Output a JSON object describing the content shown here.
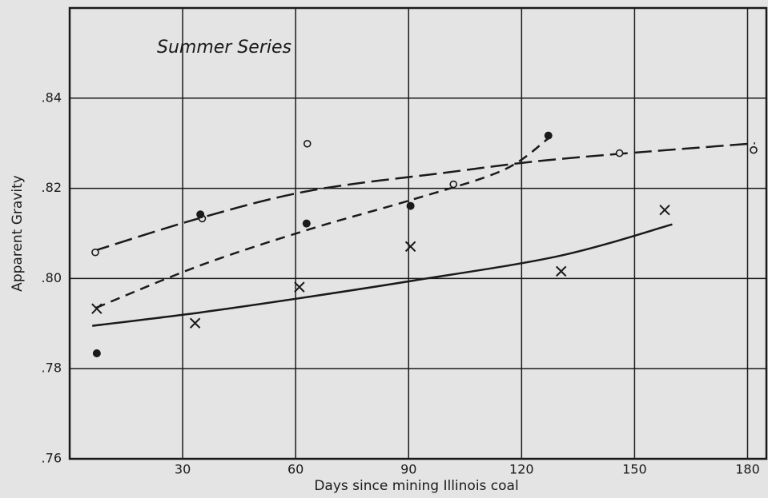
{
  "chart_data": {
    "type": "scatter",
    "title": "Summer Series",
    "x_label": "Days since mining Illinois coal",
    "y_label": "Apparent Gravity",
    "xlim": [
      0,
      185
    ],
    "ylim": [
      0.76,
      0.86
    ],
    "xticks": [
      30,
      60,
      90,
      120,
      150,
      180
    ],
    "yticks": [
      {
        "value": 0.76,
        "label": ".76"
      },
      {
        "value": 0.78,
        "label": ".78"
      },
      {
        "value": 0.8,
        "label": ".80"
      },
      {
        "value": 0.82,
        "label": ".82"
      },
      {
        "value": 0.84,
        "label": ".84"
      }
    ],
    "grid": true,
    "series": [
      {
        "marker": "circle-open",
        "color": "#1a1a1a",
        "x": [
          6.8,
          35.2,
          63.1,
          101.9,
          146,
          181.6
        ],
        "values": [
          0.8058,
          0.8133,
          0.8299,
          0.8209,
          0.8278,
          0.8285
        ]
      },
      {
        "marker": "circle-filled",
        "color": "#1a1a1a",
        "x": [
          7.2,
          34.7,
          62.9,
          90.5,
          127.1
        ],
        "values": [
          0.7834,
          0.8142,
          0.8122,
          0.8161,
          0.8317
        ]
      },
      {
        "marker": "x",
        "color": "#1a1a1a",
        "x": [
          7.2,
          33.3,
          61,
          90.5,
          130.5,
          158
        ],
        "values": [
          0.7933,
          0.7901,
          0.7981,
          0.8071,
          0.8016,
          0.8152
        ]
      }
    ],
    "curves": [
      {
        "dash": "long",
        "color": "#1a1a1a",
        "x": [
          6,
          35,
          64,
          100,
          130,
          182
        ],
        "values": [
          0.806,
          0.8135,
          0.8195,
          0.8235,
          0.8265,
          0.83
        ]
      },
      {
        "dash": "short",
        "color": "#1a1a1a",
        "x": [
          7,
          35,
          64,
          91,
          115,
          127
        ],
        "values": [
          0.7935,
          0.803,
          0.811,
          0.8175,
          0.824,
          0.831
        ]
      },
      {
        "dash": "solid",
        "color": "#1a1a1a",
        "x": [
          6,
          35,
          64,
          91,
          130,
          160
        ],
        "values": [
          0.7895,
          0.7925,
          0.796,
          0.7995,
          0.805,
          0.812
        ]
      }
    ]
  }
}
